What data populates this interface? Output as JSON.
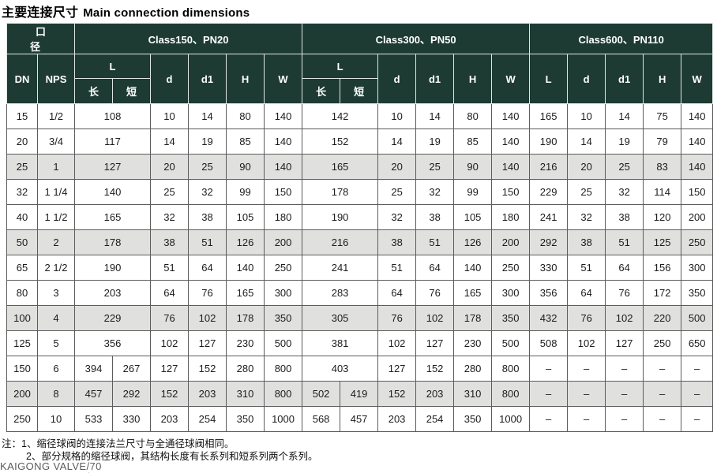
{
  "title": {
    "cn": "主要连接尺寸",
    "en": "Main connection dimensions"
  },
  "colors": {
    "header_bg": "#1d3b33",
    "header_text": "#ffffff",
    "shaded_row_bg": "#e0e0de",
    "cell_border": "#5c5c5c",
    "header_border": "#dfe6e2"
  },
  "table": {
    "groups": [
      "口　径",
      "Class150、PN20",
      "Class300、PN50",
      "Class600、PN110"
    ],
    "col": {
      "dn": "DN",
      "nps": "NPS",
      "l": "L",
      "l_long": "长",
      "l_short": "短",
      "d": "d",
      "d1": "d1",
      "h": "H",
      "w": "W"
    },
    "rows": [
      {
        "shaded": false,
        "cells": [
          "15",
          "1/2",
          {
            "v": "108",
            "colspan": 2
          },
          "10",
          "14",
          "80",
          "140",
          {
            "v": "142",
            "colspan": 2
          },
          "10",
          "14",
          "80",
          "140",
          "165",
          "10",
          "14",
          "75",
          "140"
        ]
      },
      {
        "shaded": false,
        "cells": [
          "20",
          "3/4",
          {
            "v": "117",
            "colspan": 2
          },
          "14",
          "19",
          "85",
          "140",
          {
            "v": "152",
            "colspan": 2
          },
          "14",
          "19",
          "85",
          "140",
          "190",
          "14",
          "19",
          "79",
          "140"
        ]
      },
      {
        "shaded": true,
        "cells": [
          "25",
          "1",
          {
            "v": "127",
            "colspan": 2
          },
          "20",
          "25",
          "90",
          "140",
          {
            "v": "165",
            "colspan": 2
          },
          "20",
          "25",
          "90",
          "140",
          "216",
          "20",
          "25",
          "83",
          "140"
        ]
      },
      {
        "shaded": false,
        "cells": [
          "32",
          "1 1/4",
          {
            "v": "140",
            "colspan": 2
          },
          "25",
          "32",
          "99",
          "150",
          {
            "v": "178",
            "colspan": 2
          },
          "25",
          "32",
          "99",
          "150",
          "229",
          "25",
          "32",
          "114",
          "150"
        ]
      },
      {
        "shaded": false,
        "cells": [
          "40",
          "1 1/2",
          {
            "v": "165",
            "colspan": 2
          },
          "32",
          "38",
          "105",
          "180",
          {
            "v": "190",
            "colspan": 2
          },
          "32",
          "38",
          "105",
          "180",
          "241",
          "32",
          "38",
          "120",
          "200"
        ]
      },
      {
        "shaded": true,
        "cells": [
          "50",
          "2",
          {
            "v": "178",
            "colspan": 2
          },
          "38",
          "51",
          "126",
          "200",
          {
            "v": "216",
            "colspan": 2
          },
          "38",
          "51",
          "126",
          "200",
          "292",
          "38",
          "51",
          "125",
          "250"
        ]
      },
      {
        "shaded": false,
        "cells": [
          "65",
          "2 1/2",
          {
            "v": "190",
            "colspan": 2
          },
          "51",
          "64",
          "140",
          "250",
          {
            "v": "241",
            "colspan": 2
          },
          "51",
          "64",
          "140",
          "250",
          "330",
          "51",
          "64",
          "156",
          "300"
        ]
      },
      {
        "shaded": false,
        "cells": [
          "80",
          "3",
          {
            "v": "203",
            "colspan": 2
          },
          "64",
          "76",
          "165",
          "300",
          {
            "v": "283",
            "colspan": 2
          },
          "64",
          "76",
          "165",
          "300",
          "356",
          "64",
          "76",
          "172",
          "350"
        ]
      },
      {
        "shaded": true,
        "cells": [
          "100",
          "4",
          {
            "v": "229",
            "colspan": 2
          },
          "76",
          "102",
          "178",
          "350",
          {
            "v": "305",
            "colspan": 2
          },
          "76",
          "102",
          "178",
          "350",
          "432",
          "76",
          "102",
          "220",
          "500"
        ]
      },
      {
        "shaded": false,
        "cells": [
          "125",
          "5",
          {
            "v": "356",
            "colspan": 2
          },
          "102",
          "127",
          "230",
          "500",
          {
            "v": "381",
            "colspan": 2
          },
          "102",
          "127",
          "230",
          "500",
          "508",
          "102",
          "127",
          "250",
          "650"
        ]
      },
      {
        "shaded": false,
        "cells": [
          "150",
          "6",
          "394",
          "267",
          "127",
          "152",
          "280",
          "800",
          {
            "v": "403",
            "colspan": 2
          },
          "127",
          "152",
          "280",
          "800",
          "–",
          "–",
          "–",
          "–",
          "–"
        ]
      },
      {
        "shaded": true,
        "cells": [
          "200",
          "8",
          "457",
          "292",
          "152",
          "203",
          "310",
          "800",
          "502",
          "419",
          "152",
          "203",
          "310",
          "800",
          "–",
          "–",
          "–",
          "–",
          "–"
        ]
      },
      {
        "shaded": false,
        "cells": [
          "250",
          "10",
          "533",
          "330",
          "203",
          "254",
          "350",
          "1000",
          "568",
          "457",
          "203",
          "254",
          "350",
          "1000",
          "–",
          "–",
          "–",
          "–",
          "–"
        ]
      }
    ]
  },
  "notes": [
    "注：1、缩径球阀的连接法兰尺寸与全通径球阀相同。",
    "2、部分规格的缩径球阀，其结构长度有长系列和短系列两个系列。"
  ],
  "footer": "KAIGONG VALVE/70"
}
